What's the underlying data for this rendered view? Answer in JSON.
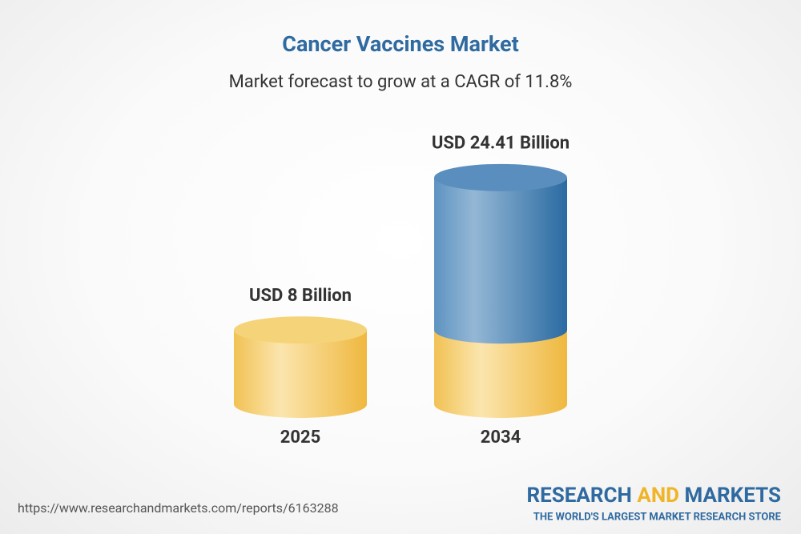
{
  "chart_data": {
    "type": "cylinder",
    "title": "Cancer Vaccines Market",
    "subtitle": "Market forecast to grow at a CAGR of 11.8%",
    "categories": [
      "2025",
      "2034"
    ],
    "values": [
      8,
      24.41
    ],
    "value_labels": [
      "USD 8 Billion",
      "USD 24.41 Billion"
    ]
  },
  "footer": {
    "url": "https://www.researchandmarkets.com/reports/6163288",
    "brand": [
      "RESEARCH",
      "AND",
      "MARKETS"
    ],
    "tagline": "THE WORLD'S LARGEST MARKET RESEARCH STORE"
  }
}
